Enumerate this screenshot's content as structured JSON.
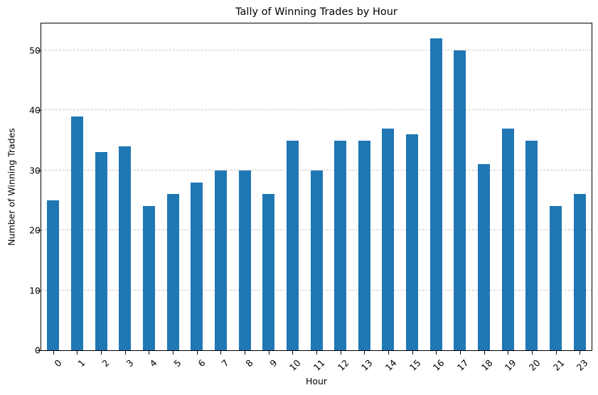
{
  "chart_data": {
    "type": "bar",
    "title": "Tally of Winning Trades by Hour",
    "xlabel": "Hour",
    "ylabel": "Number of Winning Trades",
    "categories": [
      "0",
      "1",
      "2",
      "3",
      "4",
      "5",
      "6",
      "7",
      "8",
      "9",
      "10",
      "11",
      "12",
      "13",
      "14",
      "15",
      "16",
      "17",
      "18",
      "19",
      "20",
      "21",
      "23"
    ],
    "values": [
      25,
      39,
      33,
      34,
      24,
      26,
      28,
      30,
      30,
      26,
      35,
      30,
      35,
      35,
      37,
      36,
      52,
      50,
      31,
      37,
      35,
      24,
      26
    ],
    "ylim": [
      0,
      54.6
    ],
    "yticks": [
      0,
      10,
      20,
      30,
      40,
      50
    ],
    "grid": {
      "axis": "y",
      "style": "dashed",
      "color": "#c8c8c8"
    },
    "bar_color": "#1f77b4",
    "xtick_rotation": 45,
    "legend": null
  }
}
